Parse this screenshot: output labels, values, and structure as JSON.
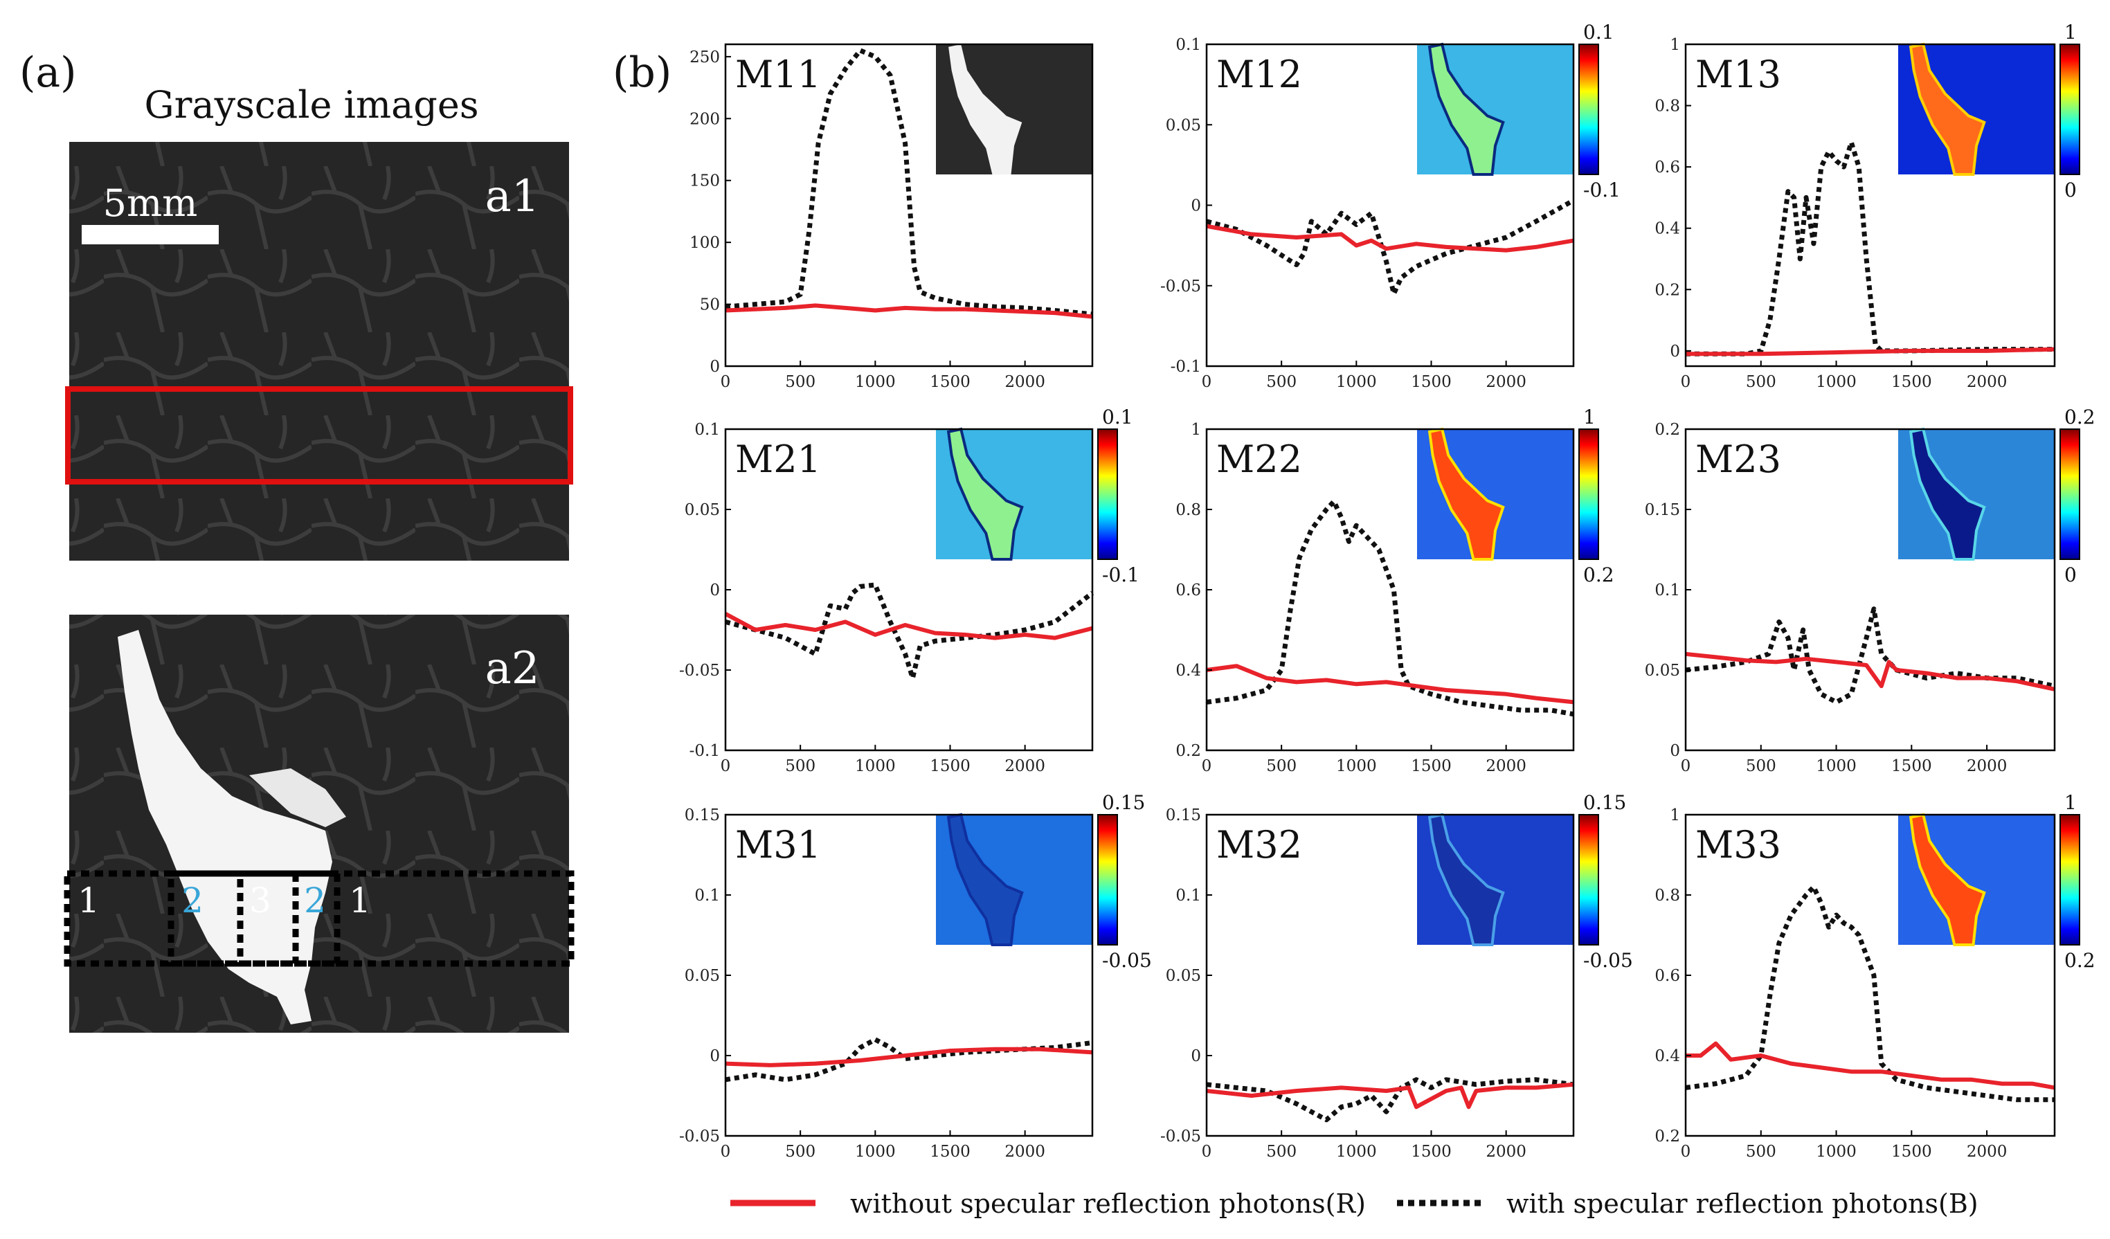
{
  "panel_a": {
    "label": "(a)",
    "title": "Grayscale images",
    "scale_bar": "5mm",
    "a1_label": "a1",
    "a2_label": "a2",
    "regions": [
      "1",
      "2",
      "3",
      "2",
      "1"
    ],
    "colors": {
      "roi_box": "#e01010",
      "region_text": "#ffffff",
      "region_text_alt": "#39a6d8"
    }
  },
  "panel_b": {
    "label": "(b)"
  },
  "legend": {
    "red_label": "without specular reflection photons(R)",
    "black_label": "with specular reflection photons(B)"
  },
  "colors": {
    "red": "#e8232b",
    "black": "#111111"
  },
  "chart_data": [
    {
      "type": "line",
      "title": "M11",
      "xlim": [
        0,
        2450
      ],
      "ylim": [
        0,
        260
      ],
      "xticks": [
        0,
        500,
        1000,
        1500,
        2000
      ],
      "yticks": [
        0,
        50,
        100,
        150,
        200,
        250
      ],
      "xtick_labels": [
        "0",
        "500",
        "1000",
        "1500",
        "2000"
      ],
      "ytick_labels": [
        "0",
        "50",
        "100",
        "150",
        "200",
        "250"
      ],
      "inset": "grayscale",
      "colorbar": null,
      "series": [
        {
          "name": "without specular reflection photons(R)",
          "x": [
            0,
            200,
            400,
            600,
            800,
            1000,
            1200,
            1400,
            1600,
            1800,
            2000,
            2200,
            2450
          ],
          "y": [
            45,
            46,
            47,
            49,
            47,
            45,
            47,
            46,
            46,
            45,
            44,
            43,
            40
          ]
        },
        {
          "name": "with specular reflection photons(B)",
          "x": [
            0,
            200,
            400,
            500,
            560,
            620,
            700,
            800,
            900,
            1000,
            1100,
            1200,
            1260,
            1300,
            1400,
            1600,
            1800,
            2000,
            2200,
            2450
          ],
          "y": [
            48,
            50,
            52,
            58,
            110,
            180,
            220,
            240,
            255,
            250,
            235,
            180,
            80,
            60,
            55,
            50,
            48,
            47,
            45,
            42
          ]
        }
      ]
    },
    {
      "type": "line",
      "title": "M12",
      "xlim": [
        0,
        2450
      ],
      "ylim": [
        -0.1,
        0.1
      ],
      "xticks": [
        0,
        500,
        1000,
        1500,
        2000
      ],
      "yticks": [
        -0.1,
        -0.05,
        0,
        0.05,
        0.1
      ],
      "xtick_labels": [
        "0",
        "500",
        "1000",
        "1500",
        "2000"
      ],
      "ytick_labels": [
        "-0.1",
        "-0.05",
        "0",
        "0.05",
        "0.1"
      ],
      "inset": "m12",
      "colorbar": {
        "top": "0.1",
        "bottom": "-0.1",
        "scheme": "jet"
      },
      "series": [
        {
          "name": "without specular reflection photons(R)",
          "x": [
            0,
            300,
            600,
            900,
            1000,
            1100,
            1200,
            1400,
            1600,
            1800,
            2000,
            2200,
            2450
          ],
          "y": [
            -0.013,
            -0.018,
            -0.02,
            -0.018,
            -0.025,
            -0.022,
            -0.027,
            -0.024,
            -0.026,
            -0.027,
            -0.028,
            -0.026,
            -0.022
          ]
        },
        {
          "name": "with specular reflection photons(B)",
          "x": [
            0,
            200,
            400,
            600,
            650,
            700,
            800,
            900,
            1000,
            1100,
            1200,
            1250,
            1300,
            1400,
            1600,
            1800,
            2000,
            2200,
            2450
          ],
          "y": [
            -0.01,
            -0.015,
            -0.025,
            -0.037,
            -0.03,
            -0.01,
            -0.018,
            -0.005,
            -0.012,
            -0.005,
            -0.035,
            -0.055,
            -0.045,
            -0.038,
            -0.03,
            -0.025,
            -0.02,
            -0.01,
            0.003
          ]
        }
      ]
    },
    {
      "type": "line",
      "title": "M13",
      "xlim": [
        0,
        2450
      ],
      "ylim": [
        -0.05,
        1
      ],
      "xticks": [
        0,
        500,
        1000,
        1500,
        2000
      ],
      "yticks": [
        0,
        0.2,
        0.4,
        0.6,
        0.8,
        1
      ],
      "xtick_labels": [
        "0",
        "500",
        "1000",
        "1500",
        "2000"
      ],
      "ytick_labels": [
        "0",
        "0.2",
        "0.4",
        "0.6",
        "0.8",
        "1"
      ],
      "inset": "m13",
      "colorbar": {
        "top": "1",
        "bottom": "0",
        "scheme": "jet"
      },
      "series": [
        {
          "name": "without specular reflection photons(R)",
          "x": [
            0,
            500,
            1000,
            1500,
            2000,
            2450
          ],
          "y": [
            -0.01,
            -0.01,
            -0.005,
            0,
            0,
            0.005
          ]
        },
        {
          "name": "with specular reflection photons(B)",
          "x": [
            0,
            400,
            500,
            560,
            620,
            680,
            720,
            760,
            800,
            850,
            900,
            950,
            1000,
            1050,
            1100,
            1150,
            1200,
            1260,
            1300,
            1500,
            2000,
            2450
          ],
          "y": [
            -0.01,
            -0.01,
            0,
            0.1,
            0.3,
            0.52,
            0.5,
            0.3,
            0.5,
            0.35,
            0.6,
            0.65,
            0.62,
            0.6,
            0.68,
            0.6,
            0.3,
            0.02,
            0,
            0,
            0.005,
            0.005
          ]
        }
      ]
    },
    {
      "type": "line",
      "title": "M21",
      "xlim": [
        0,
        2450
      ],
      "ylim": [
        -0.1,
        0.1
      ],
      "xticks": [
        0,
        500,
        1000,
        1500,
        2000
      ],
      "yticks": [
        -0.1,
        -0.05,
        0,
        0.05,
        0.1
      ],
      "xtick_labels": [
        "0",
        "500",
        "1000",
        "1500",
        "2000"
      ],
      "ytick_labels": [
        "-0.1",
        "-0.05",
        "0",
        "0.05",
        "0.1"
      ],
      "inset": "m21",
      "colorbar": {
        "top": "0.1",
        "bottom": "-0.1",
        "scheme": "jet"
      },
      "series": [
        {
          "name": "without specular reflection photons(R)",
          "x": [
            0,
            200,
            400,
            600,
            800,
            1000,
            1200,
            1400,
            1600,
            1800,
            2000,
            2200,
            2450
          ],
          "y": [
            -0.015,
            -0.025,
            -0.022,
            -0.025,
            -0.02,
            -0.028,
            -0.022,
            -0.027,
            -0.028,
            -0.03,
            -0.028,
            -0.03,
            -0.024
          ]
        },
        {
          "name": "with specular reflection photons(B)",
          "x": [
            0,
            200,
            400,
            600,
            650,
            700,
            800,
            850,
            900,
            1000,
            1100,
            1200,
            1250,
            1300,
            1400,
            1600,
            1800,
            2000,
            2200,
            2450
          ],
          "y": [
            -0.02,
            -0.025,
            -0.03,
            -0.04,
            -0.025,
            -0.01,
            -0.012,
            -0.002,
            0.002,
            0.003,
            -0.02,
            -0.04,
            -0.055,
            -0.035,
            -0.032,
            -0.03,
            -0.028,
            -0.025,
            -0.02,
            -0.002
          ]
        }
      ]
    },
    {
      "type": "line",
      "title": "M22",
      "xlim": [
        0,
        2450
      ],
      "ylim": [
        0.2,
        1
      ],
      "xticks": [
        0,
        500,
        1000,
        1500,
        2000
      ],
      "yticks": [
        0.2,
        0.4,
        0.6,
        0.8,
        1
      ],
      "xtick_labels": [
        "0",
        "500",
        "1000",
        "1500",
        "2000"
      ],
      "ytick_labels": [
        "0.2",
        "0.4",
        "0.6",
        "0.8",
        "1"
      ],
      "inset": "m22",
      "colorbar": {
        "top": "1",
        "bottom": "0.2",
        "scheme": "jet"
      },
      "series": [
        {
          "name": "without specular reflection photons(R)",
          "x": [
            0,
            200,
            400,
            600,
            800,
            1000,
            1200,
            1400,
            1600,
            1800,
            2000,
            2200,
            2450
          ],
          "y": [
            0.4,
            0.41,
            0.38,
            0.37,
            0.375,
            0.365,
            0.37,
            0.36,
            0.35,
            0.345,
            0.34,
            0.33,
            0.32
          ]
        },
        {
          "name": "with specular reflection photons(B)",
          "x": [
            0,
            200,
            400,
            500,
            560,
            620,
            700,
            800,
            850,
            900,
            950,
            1000,
            1050,
            1100,
            1150,
            1250,
            1300,
            1350,
            1500,
            1700,
            1900,
            2100,
            2300,
            2450
          ],
          "y": [
            0.32,
            0.33,
            0.35,
            0.4,
            0.55,
            0.68,
            0.75,
            0.8,
            0.82,
            0.78,
            0.72,
            0.76,
            0.74,
            0.72,
            0.7,
            0.6,
            0.4,
            0.36,
            0.34,
            0.32,
            0.31,
            0.3,
            0.3,
            0.29
          ]
        }
      ]
    },
    {
      "type": "line",
      "title": "M23",
      "xlim": [
        0,
        2450
      ],
      "ylim": [
        0,
        0.2
      ],
      "xticks": [
        0,
        500,
        1000,
        1500,
        2000
      ],
      "yticks": [
        0,
        0.05,
        0.1,
        0.15,
        0.2
      ],
      "xtick_labels": [
        "0",
        "500",
        "1000",
        "1500",
        "2000"
      ],
      "ytick_labels": [
        "0",
        "0.05",
        "0.1",
        "0.15",
        "0.2"
      ],
      "inset": "m23",
      "colorbar": {
        "top": "0.2",
        "bottom": "0",
        "scheme": "jet"
      },
      "series": [
        {
          "name": "without specular reflection photons(R)",
          "x": [
            0,
            200,
            400,
            600,
            800,
            1000,
            1200,
            1300,
            1350,
            1400,
            1600,
            1800,
            2000,
            2200,
            2450
          ],
          "y": [
            0.06,
            0.058,
            0.056,
            0.055,
            0.057,
            0.055,
            0.053,
            0.04,
            0.055,
            0.05,
            0.048,
            0.045,
            0.045,
            0.043,
            0.038
          ]
        },
        {
          "name": "with specular reflection photons(B)",
          "x": [
            0,
            200,
            400,
            550,
            620,
            680,
            720,
            780,
            820,
            900,
            1000,
            1100,
            1200,
            1250,
            1300,
            1400,
            1600,
            1800,
            2000,
            2200,
            2450
          ],
          "y": [
            0.05,
            0.052,
            0.055,
            0.06,
            0.08,
            0.07,
            0.05,
            0.075,
            0.05,
            0.035,
            0.03,
            0.035,
            0.07,
            0.088,
            0.06,
            0.05,
            0.045,
            0.048,
            0.045,
            0.045,
            0.04
          ]
        }
      ]
    },
    {
      "type": "line",
      "title": "M31",
      "xlim": [
        0,
        2450
      ],
      "ylim": [
        -0.05,
        0.15
      ],
      "xticks": [
        0,
        500,
        1000,
        1500,
        2000
      ],
      "yticks": [
        -0.05,
        0,
        0.05,
        0.1,
        0.15
      ],
      "xtick_labels": [
        "0",
        "500",
        "1000",
        "1500",
        "2000"
      ],
      "ytick_labels": [
        "-0.05",
        "0",
        "0.05",
        "0.1",
        "0.15"
      ],
      "inset": "m31",
      "colorbar": {
        "top": "0.15",
        "bottom": "-0.05",
        "scheme": "jet"
      },
      "series": [
        {
          "name": "without specular reflection photons(R)",
          "x": [
            0,
            300,
            600,
            900,
            1200,
            1500,
            1800,
            2100,
            2450
          ],
          "y": [
            -0.005,
            -0.006,
            -0.005,
            -0.003,
            0,
            0.003,
            0.004,
            0.004,
            0.002
          ]
        },
        {
          "name": "with specular reflection photons(B)",
          "x": [
            0,
            200,
            400,
            600,
            800,
            900,
            1000,
            1100,
            1200,
            1400,
            1600,
            1800,
            2000,
            2200,
            2450
          ],
          "y": [
            -0.015,
            -0.012,
            -0.015,
            -0.012,
            -0.005,
            0.005,
            0.01,
            0.005,
            -0.002,
            0,
            0.002,
            0.003,
            0.004,
            0.005,
            0.008
          ]
        }
      ]
    },
    {
      "type": "line",
      "title": "M32",
      "xlim": [
        0,
        2450
      ],
      "ylim": [
        -0.05,
        0.15
      ],
      "xticks": [
        0,
        500,
        1000,
        1500,
        2000
      ],
      "yticks": [
        -0.05,
        0,
        0.05,
        0.1,
        0.15
      ],
      "xtick_labels": [
        "0",
        "500",
        "1000",
        "1500",
        "2000"
      ],
      "ytick_labels": [
        "-0.05",
        "0",
        "0.05",
        "0.1",
        "0.15"
      ],
      "inset": "m32",
      "colorbar": {
        "top": "0.15",
        "bottom": "-0.05",
        "scheme": "jet"
      },
      "series": [
        {
          "name": "without specular reflection photons(R)",
          "x": [
            0,
            300,
            600,
            900,
            1200,
            1350,
            1400,
            1600,
            1700,
            1750,
            1800,
            2000,
            2200,
            2450
          ],
          "y": [
            -0.022,
            -0.025,
            -0.022,
            -0.02,
            -0.022,
            -0.02,
            -0.032,
            -0.022,
            -0.02,
            -0.032,
            -0.022,
            -0.02,
            -0.02,
            -0.018
          ]
        },
        {
          "name": "with specular reflection photons(B)",
          "x": [
            0,
            200,
            400,
            600,
            700,
            800,
            900,
            1000,
            1100,
            1200,
            1300,
            1400,
            1500,
            1600,
            1800,
            2000,
            2200,
            2450
          ],
          "y": [
            -0.018,
            -0.02,
            -0.022,
            -0.03,
            -0.035,
            -0.04,
            -0.032,
            -0.03,
            -0.025,
            -0.035,
            -0.02,
            -0.015,
            -0.02,
            -0.015,
            -0.018,
            -0.016,
            -0.015,
            -0.018
          ]
        }
      ]
    },
    {
      "type": "line",
      "title": "M33",
      "xlim": [
        0,
        2450
      ],
      "ylim": [
        0.2,
        1
      ],
      "xticks": [
        0,
        500,
        1000,
        1500,
        2000
      ],
      "yticks": [
        0.2,
        0.4,
        0.6,
        0.8,
        1
      ],
      "xtick_labels": [
        "0",
        "500",
        "1000",
        "1500",
        "2000"
      ],
      "ytick_labels": [
        "0.2",
        "0.4",
        "0.6",
        "0.8",
        "1"
      ],
      "inset": "m33",
      "colorbar": {
        "top": "1",
        "bottom": "0.2",
        "scheme": "jet"
      },
      "series": [
        {
          "name": "without specular reflection photons(R)",
          "x": [
            0,
            100,
            200,
            300,
            500,
            700,
            900,
            1100,
            1300,
            1500,
            1700,
            1900,
            2100,
            2300,
            2450
          ],
          "y": [
            0.4,
            0.4,
            0.43,
            0.39,
            0.4,
            0.38,
            0.37,
            0.36,
            0.36,
            0.35,
            0.34,
            0.34,
            0.33,
            0.33,
            0.32
          ]
        },
        {
          "name": "with specular reflection photons(B)",
          "x": [
            0,
            200,
            400,
            500,
            560,
            620,
            700,
            800,
            850,
            900,
            950,
            1000,
            1050,
            1100,
            1150,
            1250,
            1300,
            1400,
            1600,
            1800,
            2000,
            2200,
            2450
          ],
          "y": [
            0.32,
            0.33,
            0.35,
            0.4,
            0.55,
            0.68,
            0.75,
            0.8,
            0.82,
            0.78,
            0.72,
            0.75,
            0.73,
            0.72,
            0.7,
            0.6,
            0.38,
            0.34,
            0.32,
            0.31,
            0.3,
            0.29,
            0.29
          ]
        }
      ]
    }
  ]
}
